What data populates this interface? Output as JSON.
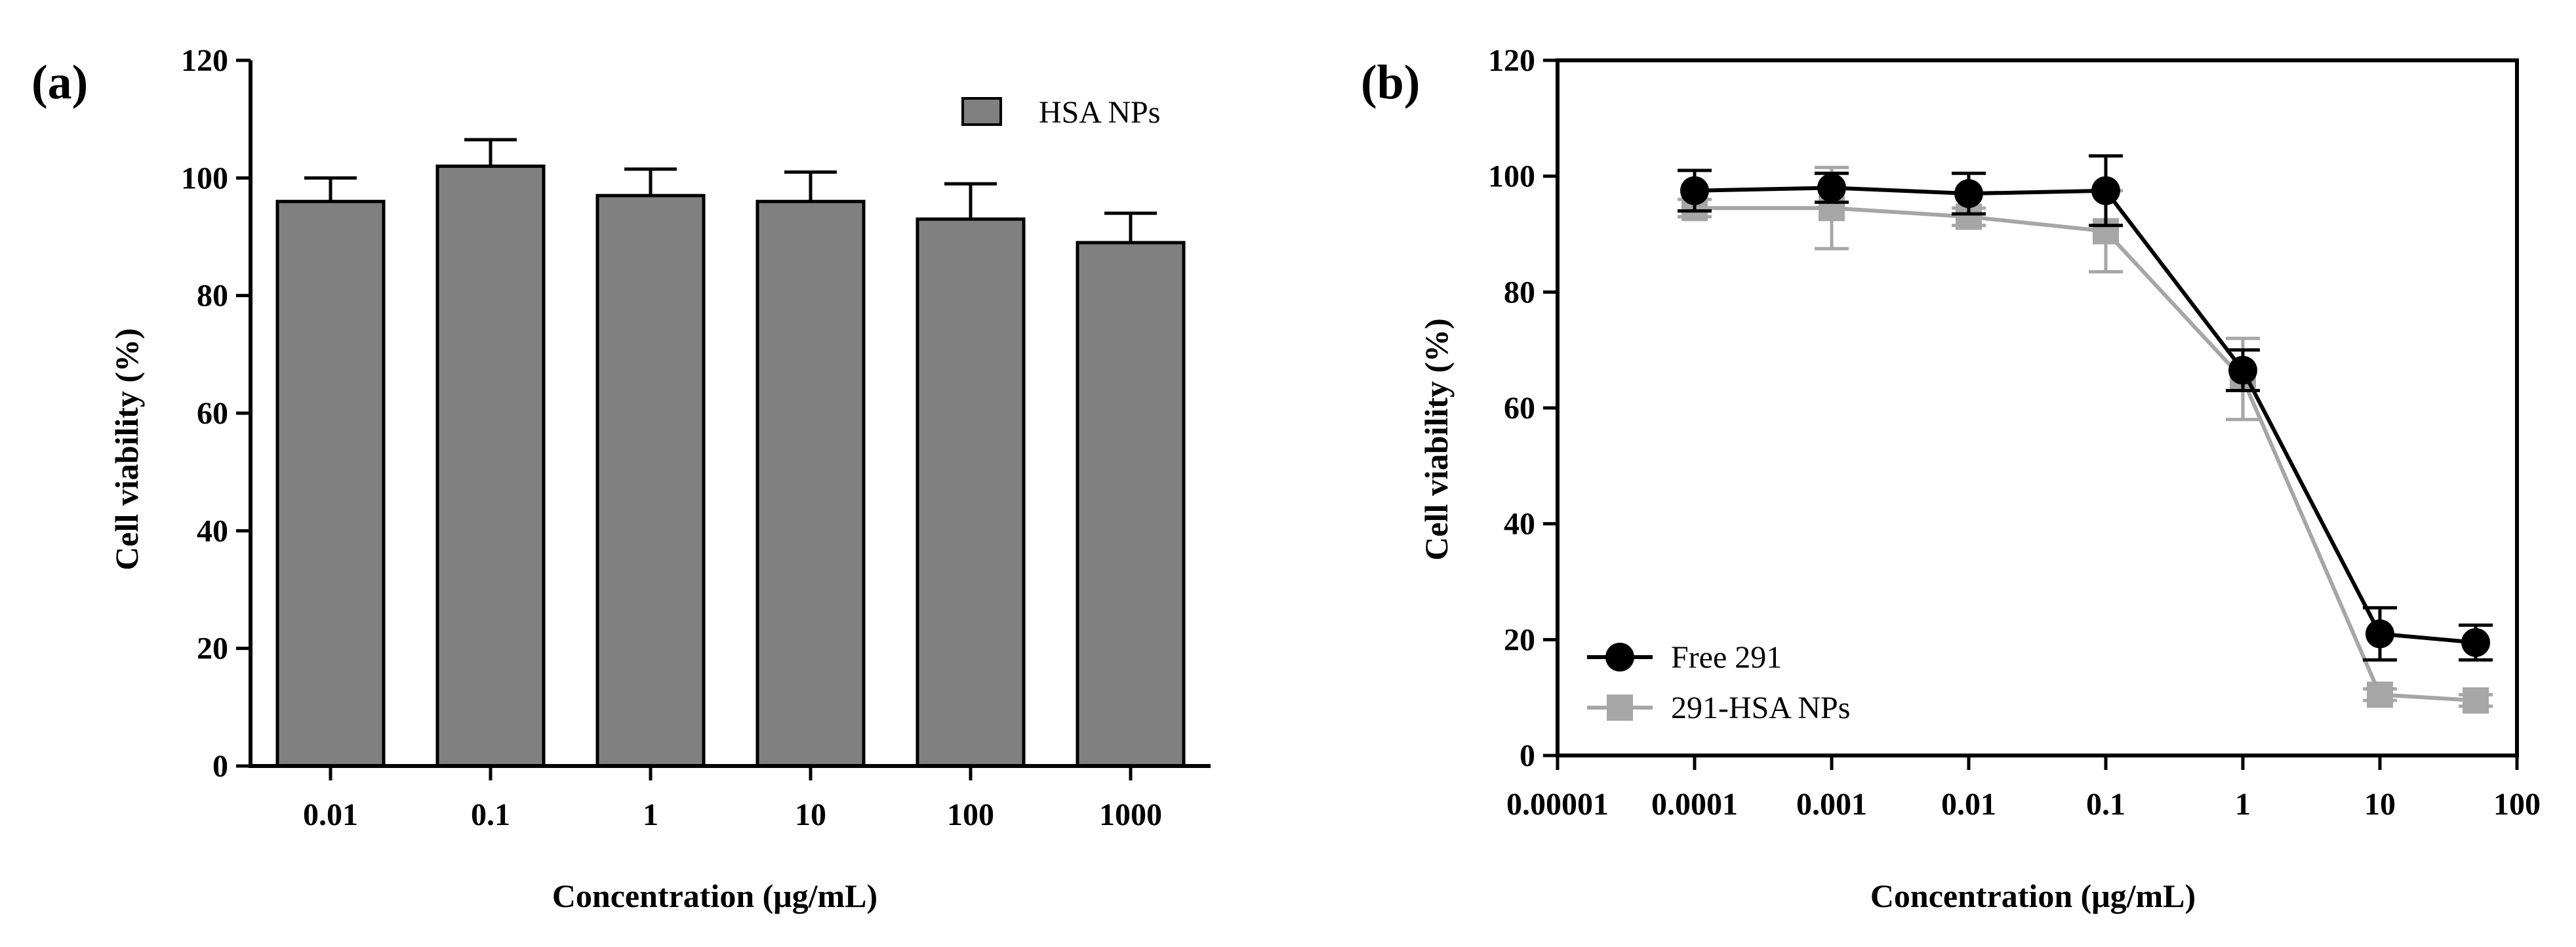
{
  "chart_data": [
    {
      "panel": "(a)",
      "type": "bar",
      "title": "",
      "xlabel": "Concentration (μg/mL)",
      "ylabel": "Cell viability (%)",
      "ylim": [
        0,
        120
      ],
      "yticks": [
        0,
        20,
        40,
        60,
        80,
        100,
        120
      ],
      "categories": [
        "0.01",
        "0.1",
        "1",
        "10",
        "100",
        "1000"
      ],
      "series": [
        {
          "name": "HSA NPs",
          "values": [
            96,
            102,
            97,
            96,
            93,
            89
          ],
          "errors": [
            4,
            4.5,
            4.5,
            5,
            6,
            5
          ],
          "color": "#808080"
        }
      ],
      "legend": {
        "position": "top-right",
        "entries": [
          "HSA NPs"
        ]
      }
    },
    {
      "panel": "(b)",
      "type": "line",
      "title": "",
      "xlabel": "Concentration (μg/mL)",
      "ylabel": "Cell viability (%)",
      "xscale": "log",
      "xlim": [
        1e-05,
        100
      ],
      "xticklabels": [
        "0.00001",
        "0.0001",
        "0.001",
        "0.01",
        "0.1",
        "1",
        "10",
        "100"
      ],
      "ylim": [
        0,
        120
      ],
      "yticks": [
        0,
        20,
        40,
        60,
        80,
        100,
        120
      ],
      "series": [
        {
          "name": "Free 291",
          "marker": "circle",
          "color": "#000000",
          "x": [
            0.0001,
            0.001,
            0.01,
            0.1,
            1,
            10,
            50
          ],
          "y": [
            97.5,
            98,
            97,
            97.5,
            66.5,
            21,
            19.5
          ],
          "errors": [
            3.5,
            2.5,
            3.5,
            6,
            3.5,
            4.5,
            3
          ]
        },
        {
          "name": "291-HSA NPs",
          "marker": "square",
          "color": "#a6a6a6",
          "x": [
            0.0001,
            0.001,
            0.01,
            0.1,
            1,
            10,
            50
          ],
          "y": [
            94.5,
            94.5,
            93,
            90.5,
            65,
            10.5,
            9.5
          ],
          "errors": [
            1.5,
            7,
            1.5,
            7,
            7,
            1,
            1
          ]
        }
      ],
      "legend": {
        "position": "bottom-left",
        "entries": [
          "Free 291",
          "291-HSA NPs"
        ]
      }
    }
  ]
}
